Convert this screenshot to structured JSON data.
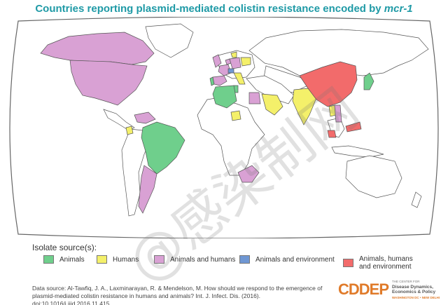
{
  "title": {
    "main": "Countries reporting plasmid-mediated colistin resistance encoded by ",
    "italic": "mcr-1"
  },
  "colors": {
    "animals": "#6fcf8c",
    "humans": "#f4f06a",
    "animals_humans": "#d9a1d4",
    "animals_environment": "#6f97d3",
    "animals_humans_environment": "#f26b6b",
    "none": "#ffffff",
    "ocean": "#ffffff",
    "border": "#555555"
  },
  "legend": {
    "title": "Isolate source(s):",
    "items": [
      {
        "key": "animals",
        "label": "Animals"
      },
      {
        "key": "humans",
        "label": "Humans"
      },
      {
        "key": "animals_humans",
        "label": "Animals and humans"
      },
      {
        "key": "animals_environment",
        "label": "Animals and environment"
      },
      {
        "key": "animals_humans_environment",
        "label": "Animals, humans and environment"
      }
    ]
  },
  "source": {
    "line1": "Data source: Al-Tawfiq, J. A., Laxminarayan, R. & Mendelson, M. How should we respond to the emergence of",
    "line2": "plasmid-mediated colistin resistance in humans and animals? Int. J. Infect. Dis. (2016). doi:10.1016/j.ijid.2016.11.415"
  },
  "logo": {
    "word": "CDDEP",
    "small": "THE CENTER FOR",
    "line1": "Disease Dynamics,",
    "line2": "Economics & Policy",
    "tag": "WASHINGTON DC • NEW DELHI"
  },
  "watermark": "@感染制网",
  "countries": [
    {
      "name": "Canada",
      "source": "animals_humans"
    },
    {
      "name": "United States",
      "source": "animals_humans"
    },
    {
      "name": "Brazil",
      "source": "animals"
    },
    {
      "name": "Ecuador",
      "source": "humans"
    },
    {
      "name": "Argentina",
      "source": "animals_humans"
    },
    {
      "name": "Venezuela",
      "source": "animals_humans"
    },
    {
      "name": "Algeria",
      "source": "animals"
    },
    {
      "name": "Tunisia",
      "source": "animals"
    },
    {
      "name": "Egypt",
      "source": "animals_humans"
    },
    {
      "name": "Nigeria",
      "source": "humans"
    },
    {
      "name": "South Africa",
      "source": "animals_humans"
    },
    {
      "name": "Saudi Arabia",
      "source": "humans"
    },
    {
      "name": "India",
      "source": "humans"
    },
    {
      "name": "China",
      "source": "animals_humans_environment"
    },
    {
      "name": "Japan",
      "source": "animals"
    },
    {
      "name": "Laos",
      "source": "humans"
    },
    {
      "name": "Vietnam",
      "source": "animals_humans"
    },
    {
      "name": "Malaysia",
      "source": "animals_humans_environment"
    },
    {
      "name": "Switzerland",
      "source": "animals_environment"
    },
    {
      "name": "United Kingdom",
      "source": "animals_humans"
    },
    {
      "name": "Germany",
      "source": "animals_humans"
    },
    {
      "name": "Netherlands",
      "source": "animals_humans"
    },
    {
      "name": "France",
      "source": "animals_humans"
    },
    {
      "name": "Italy",
      "source": "humans"
    },
    {
      "name": "Poland",
      "source": "humans"
    },
    {
      "name": "Denmark",
      "source": "humans"
    },
    {
      "name": "Spain",
      "source": "animals_humans"
    },
    {
      "name": "Portugal",
      "source": "animals"
    }
  ]
}
